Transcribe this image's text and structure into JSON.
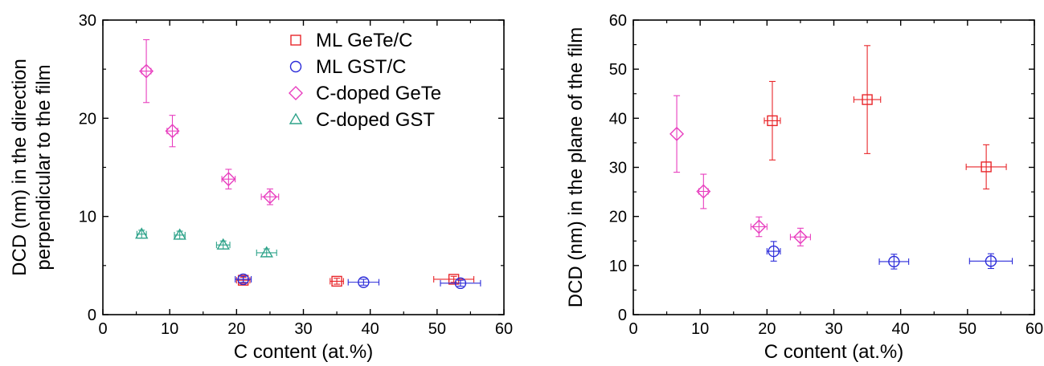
{
  "chart_data": [
    {
      "type": "scatter",
      "xlabel": "C content (at.%)",
      "ylabel_lines": [
        "DCD (nm) in the direction",
        "perpendicular to the film"
      ],
      "xlim": [
        0,
        60
      ],
      "ylim": [
        0,
        30
      ],
      "xticks": [
        0,
        10,
        20,
        30,
        40,
        50,
        60
      ],
      "yticks": [
        0,
        10,
        20,
        30
      ],
      "grid": false,
      "legend_position": "top-right",
      "series": [
        {
          "name": "ML GeTe/C",
          "marker": "square",
          "color": "#e8262a",
          "points": [
            {
              "x": 21.0,
              "y": 3.5,
              "xerr": 1.0,
              "yerr": 0.3
            },
            {
              "x": 35.0,
              "y": 3.4,
              "xerr": 1.0,
              "yerr": 0.3
            },
            {
              "x": 52.5,
              "y": 3.6,
              "xerr": 3.0,
              "yerr": 0.3
            }
          ]
        },
        {
          "name": "ML GST/C",
          "marker": "circle",
          "color": "#2b2bd9",
          "points": [
            {
              "x": 21.0,
              "y": 3.6,
              "xerr": 1.2,
              "yerr": 0.3
            },
            {
              "x": 39.0,
              "y": 3.3,
              "xerr": 2.3,
              "yerr": 0.3
            },
            {
              "x": 53.5,
              "y": 3.2,
              "xerr": 3.0,
              "yerr": 0.3
            }
          ]
        },
        {
          "name": "C-doped GeTe",
          "marker": "diamond",
          "color": "#e83fbf",
          "points": [
            {
              "x": 6.5,
              "y": 24.8,
              "xerr": 0.7,
              "yerr": 3.2
            },
            {
              "x": 10.4,
              "y": 18.7,
              "xerr": 0.8,
              "yerr": 1.6
            },
            {
              "x": 18.8,
              "y": 13.8,
              "xerr": 1.0,
              "yerr": 1.0
            },
            {
              "x": 25.0,
              "y": 12.0,
              "xerr": 1.3,
              "yerr": 0.8
            }
          ]
        },
        {
          "name": "C-doped GST",
          "marker": "triangle",
          "color": "#2ea38a",
          "points": [
            {
              "x": 5.8,
              "y": 8.2,
              "xerr": 0.7,
              "yerr": 0.4
            },
            {
              "x": 11.5,
              "y": 8.1,
              "xerr": 0.8,
              "yerr": 0.4
            },
            {
              "x": 18.0,
              "y": 7.1,
              "xerr": 1.0,
              "yerr": 0.4
            },
            {
              "x": 24.5,
              "y": 6.3,
              "xerr": 1.5,
              "yerr": 0.4
            }
          ]
        }
      ]
    },
    {
      "type": "scatter",
      "xlabel": "C content (at.%)",
      "ylabel_lines": [
        "DCD (nm) in the plane of the film"
      ],
      "xlim": [
        0,
        60
      ],
      "ylim": [
        0,
        60
      ],
      "xticks": [
        0,
        10,
        20,
        30,
        40,
        50,
        60
      ],
      "yticks": [
        0,
        10,
        20,
        30,
        40,
        50,
        60
      ],
      "grid": false,
      "series": [
        {
          "name": "ML GeTe/C",
          "marker": "square",
          "color": "#e8262a",
          "points": [
            {
              "x": 20.8,
              "y": 39.5,
              "xerr": 1.2,
              "yerr": 8.0
            },
            {
              "x": 35.0,
              "y": 43.8,
              "xerr": 2.0,
              "yerr": 11.0
            },
            {
              "x": 52.8,
              "y": 30.1,
              "xerr": 3.0,
              "yerr": 4.5
            }
          ]
        },
        {
          "name": "ML GST/C",
          "marker": "circle",
          "color": "#2b2bd9",
          "points": [
            {
              "x": 21.0,
              "y": 12.9,
              "xerr": 1.0,
              "yerr": 2.0
            },
            {
              "x": 39.0,
              "y": 10.8,
              "xerr": 2.2,
              "yerr": 1.5
            },
            {
              "x": 53.5,
              "y": 10.9,
              "xerr": 3.2,
              "yerr": 1.5
            }
          ]
        },
        {
          "name": "C-doped GeTe",
          "marker": "diamond",
          "color": "#e83fbf",
          "points": [
            {
              "x": 6.5,
              "y": 36.8,
              "xerr": 0.0,
              "yerr": 7.8
            },
            {
              "x": 10.5,
              "y": 25.1,
              "xerr": 0.7,
              "yerr": 3.5
            },
            {
              "x": 18.8,
              "y": 17.9,
              "xerr": 1.2,
              "yerr": 2.0
            },
            {
              "x": 25.0,
              "y": 15.8,
              "xerr": 1.5,
              "yerr": 1.8
            }
          ]
        }
      ]
    }
  ]
}
